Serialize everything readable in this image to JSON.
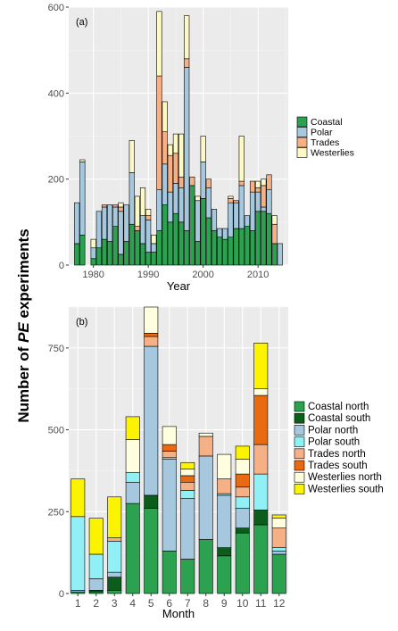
{
  "ylabel_shared": {
    "pre": "Number of ",
    "em": "PE",
    "post": " experiments"
  },
  "colors": {
    "Coastal": "#2ca14f",
    "Polar": "#a6c8de",
    "Trades": "#f5b086",
    "Westerlies": "#fdf9c5",
    "Coastal north": "#2ca14f",
    "Coastal south": "#0a5d1a",
    "Polar north": "#a6c8de",
    "Polar south": "#90f0f6",
    "Trades north": "#f5b086",
    "Trades south": "#ea6a12",
    "Westerlies north": "#ffffe0",
    "Westerlies south": "#fbf300"
  },
  "chart_data": [
    {
      "type": "bar",
      "stacked": true,
      "panel_label": "(a)",
      "xlabel": "Year",
      "ylabel": "",
      "ylim": [
        0,
        600
      ],
      "xlim": [
        1975.5,
        2015.5
      ],
      "x_ticks": [
        1980,
        1990,
        2000,
        2010
      ],
      "y_ticks": [
        0,
        200,
        400,
        600
      ],
      "grid": true,
      "legend_position": "right",
      "legend": [
        "Coastal",
        "Polar",
        "Trades",
        "Westerlies"
      ],
      "x": [
        1977,
        1978,
        1979,
        1980,
        1981,
        1982,
        1983,
        1984,
        1985,
        1986,
        1987,
        1988,
        1989,
        1990,
        1991,
        1992,
        1993,
        1994,
        1995,
        1996,
        1997,
        1998,
        1999,
        2000,
        2001,
        2002,
        2003,
        2004,
        2005,
        2006,
        2007,
        2008,
        2009,
        2010,
        2011,
        2012,
        2013,
        2014
      ],
      "series": [
        {
          "name": "Coastal",
          "values": [
            50,
            70,
            0,
            15,
            40,
            60,
            55,
            90,
            25,
            55,
            95,
            80,
            50,
            30,
            30,
            80,
            140,
            100,
            120,
            100,
            80,
            185,
            55,
            155,
            110,
            80,
            65,
            60,
            65,
            85,
            85,
            90,
            80,
            125,
            125,
            120,
            50,
            0
          ]
        },
        {
          "name": "Polar",
          "values": [
            95,
            170,
            0,
            25,
            85,
            75,
            85,
            45,
            100,
            85,
            120,
            0,
            65,
            75,
            20,
            95,
            95,
            70,
            70,
            80,
            380,
            0,
            95,
            85,
            70,
            50,
            20,
            25,
            80,
            60,
            100,
            25,
            90,
            45,
            10,
            55,
            0,
            50
          ]
        },
        {
          "name": "Trades",
          "values": [
            0,
            0,
            0,
            0,
            0,
            5,
            0,
            5,
            10,
            0,
            0,
            10,
            0,
            10,
            0,
            265,
            75,
            85,
            70,
            25,
            20,
            20,
            0,
            0,
            20,
            0,
            0,
            0,
            10,
            5,
            10,
            0,
            25,
            10,
            50,
            35,
            45,
            0
          ]
        },
        {
          "name": "Westerlies",
          "values": [
            0,
            5,
            0,
            20,
            0,
            0,
            0,
            0,
            10,
            0,
            75,
            70,
            65,
            15,
            20,
            150,
            70,
            25,
            45,
            100,
            100,
            0,
            10,
            60,
            0,
            0,
            0,
            0,
            5,
            0,
            105,
            0,
            0,
            15,
            15,
            0,
            20,
            0
          ]
        }
      ]
    },
    {
      "type": "bar",
      "stacked": true,
      "panel_label": "(b)",
      "xlabel": "Month",
      "ylabel": "",
      "ylim": [
        0,
        875
      ],
      "categories": [
        "1",
        "2",
        "3",
        "4",
        "5",
        "6",
        "7",
        "8",
        "9",
        "10",
        "11",
        "12"
      ],
      "y_ticks": [
        0,
        250,
        500,
        750
      ],
      "grid": true,
      "legend_position": "right",
      "legend": [
        "Coastal north",
        "Coastal south",
        "Polar north",
        "Polar south",
        "Trades north",
        "Trades south",
        "Westerlies north",
        "Westerlies south"
      ],
      "series": [
        {
          "name": "Coastal north",
          "values": [
            5,
            5,
            10,
            275,
            260,
            130,
            105,
            165,
            115,
            185,
            210,
            120
          ]
        },
        {
          "name": "Coastal south",
          "values": [
            0,
            5,
            40,
            0,
            40,
            0,
            0,
            0,
            25,
            15,
            45,
            0
          ]
        },
        {
          "name": "Polar north",
          "values": [
            5,
            35,
            15,
            65,
            455,
            280,
            185,
            255,
            160,
            60,
            0,
            10
          ]
        },
        {
          "name": "Polar south",
          "values": [
            225,
            75,
            95,
            30,
            0,
            5,
            25,
            0,
            5,
            35,
            110,
            10
          ]
        },
        {
          "name": "Trades north",
          "values": [
            0,
            0,
            10,
            0,
            30,
            20,
            25,
            60,
            45,
            30,
            90,
            60
          ]
        },
        {
          "name": "Trades south",
          "values": [
            0,
            0,
            0,
            0,
            10,
            20,
            20,
            0,
            0,
            40,
            150,
            0
          ]
        },
        {
          "name": "Westerlies north",
          "values": [
            0,
            0,
            0,
            100,
            80,
            55,
            20,
            10,
            75,
            45,
            20,
            30
          ]
        },
        {
          "name": "Westerlies south",
          "values": [
            115,
            110,
            125,
            70,
            0,
            0,
            20,
            0,
            0,
            40,
            140,
            10
          ]
        }
      ]
    }
  ]
}
